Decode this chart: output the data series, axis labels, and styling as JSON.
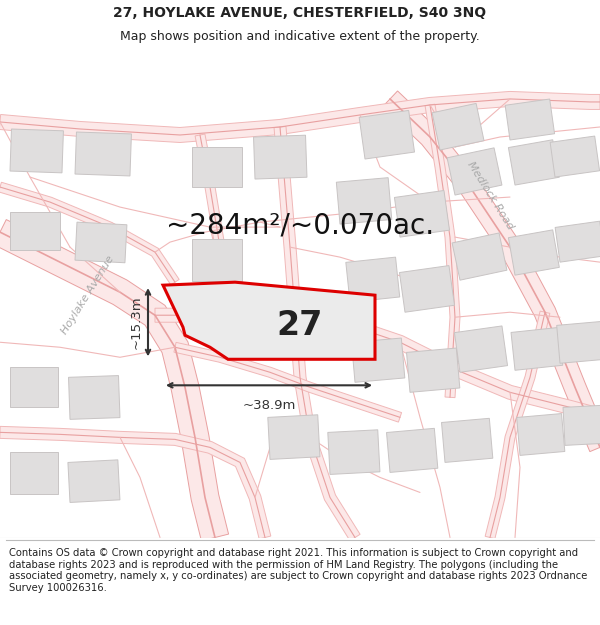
{
  "title": "27, HOYLAKE AVENUE, CHESTERFIELD, S40 3NQ",
  "subtitle": "Map shows position and indicative extent of the property.",
  "area_label": "~284m²/~0.070ac.",
  "number_label": "27",
  "width_label": "~38.9m",
  "height_label": "~15.3m",
  "footer": "Contains OS data © Crown copyright and database right 2021. This information is subject to Crown copyright and database rights 2023 and is reproduced with the permission of HM Land Registry. The polygons (including the associated geometry, namely x, y co-ordinates) are subject to Crown copyright and database rights 2023 Ordnance Survey 100026316.",
  "map_bg": "#ffffff",
  "road_fill": "#fce8e8",
  "road_line": "#e8a0a0",
  "road_line2": "#f0b8b8",
  "property_fill": "#eeeeee",
  "property_border": "#dd0000",
  "building_fill": "#e0dede",
  "building_border": "#c8c4c4",
  "text_color": "#222222",
  "measure_color": "#333333",
  "street_label_color": "#aaaaaa",
  "title_fontsize": 10,
  "subtitle_fontsize": 9,
  "area_fontsize": 20,
  "number_fontsize": 24,
  "measure_fontsize": 9.5,
  "footer_fontsize": 7.2,
  "road_lw": 1.2,
  "road_lw2": 0.8
}
